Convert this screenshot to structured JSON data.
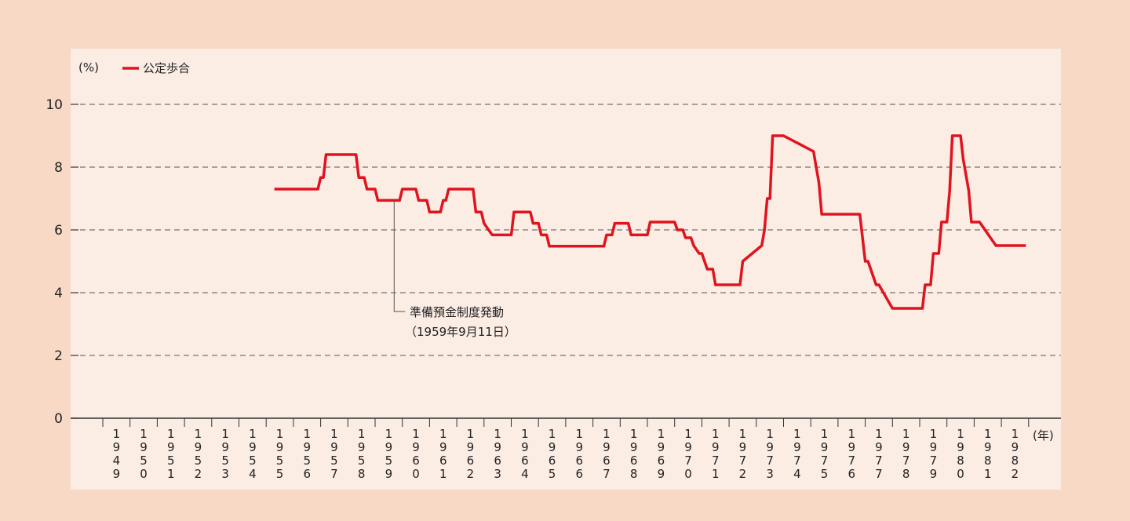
{
  "chart_data": {
    "type": "line",
    "ylabel": "(%)",
    "xlabel": "(年)",
    "ylim": [
      0,
      11.5
    ],
    "yticks": [
      0,
      2,
      4,
      6,
      8,
      10
    ],
    "grid": "dashed horizontal",
    "legend": {
      "position": "top-left",
      "label": "公定歩合"
    },
    "colors": {
      "line": "#e0141e",
      "plot_bg": "#fbece4",
      "page_bg": "#f7d9c6"
    },
    "x_categories": [
      "1949",
      "1950",
      "1951",
      "1952",
      "1953",
      "1954",
      "1955",
      "1956",
      "1957",
      "1958",
      "1959",
      "1960",
      "1961",
      "1962",
      "1963",
      "1964",
      "1965",
      "1966",
      "1967",
      "1968",
      "1969",
      "1970",
      "1971",
      "1972",
      "1973",
      "1974",
      "1975",
      "1976",
      "1977",
      "1978",
      "1979",
      "1980",
      "1981",
      "1982"
    ],
    "series": [
      {
        "name": "公定歩合",
        "x": [
          1955.3,
          1956.9,
          1957.0,
          1957.1,
          1957.2,
          1957.3,
          1958.3,
          1958.4,
          1958.6,
          1958.7,
          1959.0,
          1959.1,
          1959.4,
          1959.5,
          1959.9,
          1960.0,
          1960.5,
          1960.6,
          1960.9,
          1961.0,
          1961.4,
          1961.5,
          1961.6,
          1961.7,
          1962.6,
          1962.7,
          1962.9,
          1963.0,
          1963.3,
          1963.4,
          1964.0,
          1964.1,
          1964.7,
          1964.8,
          1965.0,
          1965.1,
          1965.3,
          1965.4,
          1967.4,
          1967.5,
          1967.7,
          1967.8,
          1968.3,
          1968.4,
          1969.0,
          1969.1,
          1970.0,
          1970.1,
          1970.3,
          1970.4,
          1970.6,
          1970.7,
          1970.9,
          1971.0,
          1971.2,
          1971.3,
          1971.4,
          1971.5,
          1971.9,
          1972.0,
          1972.4,
          1972.5,
          1973.2,
          1973.3,
          1973.4,
          1973.5,
          1973.6,
          1973.7,
          1973.8,
          1974.0,
          1975.1,
          1975.2,
          1975.3,
          1975.4,
          1975.5,
          1975.6,
          1975.7,
          1976.7,
          1976.8,
          1977.0,
          1977.1,
          1977.4,
          1977.5,
          1978.0,
          1978.1,
          1979.1,
          1979.2,
          1979.4,
          1979.5,
          1979.7,
          1979.8,
          1980.0,
          1980.1,
          1980.2,
          1980.5,
          1980.6,
          1980.8,
          1980.9,
          1981.1,
          1981.2,
          1981.8,
          1981.9,
          1982.9
        ],
        "y": [
          7.3,
          7.3,
          7.67,
          7.67,
          8.4,
          8.4,
          8.4,
          7.67,
          7.67,
          7.3,
          7.3,
          6.94,
          6.94,
          6.94,
          6.94,
          7.3,
          7.3,
          6.94,
          6.94,
          6.57,
          6.57,
          6.94,
          6.94,
          7.3,
          7.3,
          6.57,
          6.57,
          6.21,
          5.84,
          5.84,
          5.84,
          6.57,
          6.57,
          6.21,
          6.21,
          5.84,
          5.84,
          5.48,
          5.48,
          5.84,
          5.84,
          6.21,
          6.21,
          5.84,
          5.84,
          6.25,
          6.25,
          6.0,
          6.0,
          5.75,
          5.75,
          5.5,
          5.25,
          5.25,
          4.75,
          4.75,
          4.75,
          4.25,
          4.25,
          4.25,
          4.25,
          5.0,
          5.5,
          6.0,
          7.0,
          7.0,
          9.0,
          9.0,
          9.0,
          9.0,
          8.5,
          8.0,
          7.5,
          6.5,
          6.5,
          6.5,
          6.5,
          6.5,
          6.5,
          5.0,
          5.0,
          4.25,
          4.25,
          3.5,
          3.5,
          3.5,
          4.25,
          4.25,
          5.25,
          5.25,
          6.25,
          6.25,
          7.25,
          9.0,
          9.0,
          8.25,
          7.25,
          6.25,
          6.25,
          6.25,
          5.5,
          5.5,
          5.5
        ]
      }
    ],
    "annotations": [
      {
        "text": "準備預金制度発動",
        "text2": "（1959年9月11日）",
        "x": 1959.7,
        "y": 6.94
      }
    ]
  }
}
